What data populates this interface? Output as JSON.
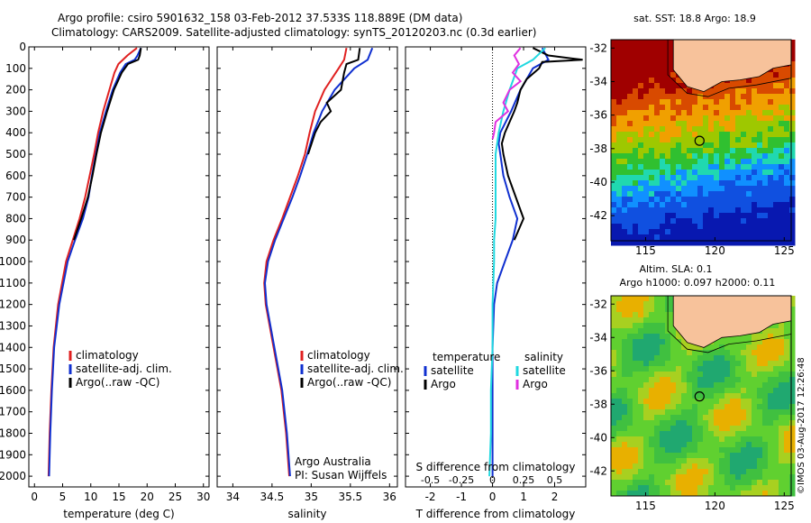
{
  "header": {
    "title_line1": "Argo profile: csiro 5901632_158 03-Feb-2012 37.533S 118.889E (DM data)",
    "title_line2": "Climatology: CARS2009. Satellite-adjusted climatology: synTS_20120203.nc (0.3d earlier)"
  },
  "colors": {
    "climatology": "#e02020",
    "satellite": "#1030d0",
    "argo": "#000000",
    "sal_satellite": "#20d8e0",
    "sal_argo": "#e030e0",
    "land": "#f7c29b"
  },
  "chart_data": [
    {
      "id": "temperature",
      "type": "line",
      "xlabel": "temperature (deg C)",
      "ylabel": "",
      "xlim": [
        -1,
        31
      ],
      "ylim": [
        0,
        2050
      ],
      "xticks": [
        0,
        5,
        10,
        15,
        20,
        25,
        30
      ],
      "yticks": [
        0,
        100,
        200,
        300,
        400,
        500,
        600,
        700,
        800,
        900,
        1000,
        1100,
        1200,
        1300,
        1400,
        1500,
        1600,
        1700,
        1800,
        1900,
        2000
      ],
      "legend": [
        "climatology",
        "satellite-adj. clim.",
        "Argo(..raw -QC)"
      ],
      "series": [
        {
          "name": "climatology",
          "depth": [
            5,
            40,
            80,
            120,
            200,
            300,
            400,
            500,
            600,
            700,
            800,
            900,
            1000,
            1200,
            1400,
            1600,
            1800,
            2000
          ],
          "values": [
            18.2,
            16.5,
            14.9,
            14.2,
            13.3,
            12.2,
            11.3,
            10.6,
            9.8,
            9.0,
            8.0,
            6.8,
            5.6,
            4.2,
            3.4,
            3.0,
            2.7,
            2.5
          ]
        },
        {
          "name": "satellite-adj. clim.",
          "depth": [
            5,
            40,
            60,
            80,
            120,
            200,
            300,
            400,
            500,
            600,
            700,
            800,
            900,
            1000,
            1200,
            1400,
            1600,
            1800,
            2000
          ],
          "values": [
            18.9,
            18.3,
            17.8,
            16.2,
            15.2,
            13.9,
            12.7,
            11.6,
            10.9,
            10.2,
            9.6,
            8.6,
            7.2,
            5.9,
            4.4,
            3.5,
            3.1,
            2.8,
            2.6
          ]
        },
        {
          "name": "Argo(..raw -QC)",
          "depth": [
            5,
            40,
            60,
            80,
            120,
            200,
            300,
            400,
            500,
            600,
            700,
            800,
            900
          ],
          "values": [
            18.9,
            18.7,
            18.4,
            16.6,
            15.5,
            14.1,
            12.9,
            11.8,
            11.0,
            10.3,
            9.5,
            8.3,
            7.0
          ]
        }
      ]
    },
    {
      "id": "salinity",
      "type": "line",
      "xlabel": "salinity",
      "ylabel": "",
      "xlim": [
        33.8,
        36.1
      ],
      "ylim": [
        0,
        2050
      ],
      "xticks": [
        34,
        34.5,
        35,
        35.5,
        36
      ],
      "legend": [
        "climatology",
        "satellite-adj. clim.",
        "Argo(..raw -QC)"
      ],
      "annotation": [
        "Argo Australia",
        "PI: Susan Wijffels"
      ],
      "series": [
        {
          "name": "climatology",
          "depth": [
            5,
            60,
            100,
            200,
            300,
            400,
            500,
            600,
            700,
            800,
            900,
            1000,
            1100,
            1200,
            1400,
            1600,
            1800,
            2000
          ],
          "values": [
            35.45,
            35.42,
            35.35,
            35.17,
            35.05,
            34.98,
            34.92,
            34.83,
            34.73,
            34.63,
            34.52,
            34.43,
            34.4,
            34.42,
            34.52,
            34.62,
            34.68,
            34.72
          ]
        },
        {
          "name": "satellite-adj. clim.",
          "depth": [
            5,
            60,
            100,
            200,
            300,
            400,
            500,
            600,
            700,
            800,
            900,
            1000,
            1100,
            1200,
            1400,
            1600,
            1800,
            2000
          ],
          "values": [
            35.78,
            35.72,
            35.55,
            35.3,
            35.14,
            35.03,
            34.95,
            34.86,
            34.76,
            34.65,
            34.54,
            34.45,
            34.41,
            34.43,
            34.53,
            34.63,
            34.69,
            34.73
          ]
        },
        {
          "name": "Argo(..raw -QC)",
          "depth": [
            5,
            60,
            80,
            120,
            200,
            260,
            300,
            350,
            400,
            500
          ],
          "values": [
            35.62,
            35.6,
            35.45,
            35.42,
            35.38,
            35.2,
            35.25,
            35.12,
            35.05,
            34.96
          ]
        }
      ]
    },
    {
      "id": "difference",
      "type": "line",
      "xlabel": "T difference from climatology",
      "xlabel2": "S difference from climatology",
      "xlim": [
        -2.8,
        3
      ],
      "ylim": [
        0,
        2050
      ],
      "xticks": [
        -2,
        -1,
        0,
        1,
        2
      ],
      "xticks_top": [
        -0.5,
        -0.25,
        0,
        0.25,
        0.5
      ],
      "legend_temp_title": "temperature",
      "legend_sal_title": "salinity",
      "legend": [
        "satellite",
        "Argo",
        "satellite",
        "Argo"
      ],
      "series": [
        {
          "name": "T satellite",
          "depth": [
            5,
            60,
            100,
            200,
            300,
            400,
            450,
            500,
            600,
            700,
            800,
            900,
            1000,
            1100,
            1200,
            1400,
            1600,
            1800,
            2000
          ],
          "values": [
            1.6,
            1.8,
            1.3,
            0.9,
            0.6,
            0.25,
            0.2,
            0.25,
            0.35,
            0.55,
            0.8,
            0.65,
            0.4,
            0.15,
            0.05,
            0.0,
            0.0,
            0.0,
            0.0
          ]
        },
        {
          "name": "T Argo",
          "depth": [
            5,
            40,
            60,
            70,
            100,
            150,
            200,
            260,
            300,
            400,
            450,
            500,
            600,
            700,
            800,
            900
          ],
          "values": [
            1.3,
            1.8,
            2.9,
            1.6,
            1.5,
            1.1,
            0.9,
            0.8,
            0.7,
            0.4,
            0.3,
            0.35,
            0.5,
            0.75,
            1.0,
            0.7
          ]
        },
        {
          "name": "S satellite",
          "depth": [
            5,
            60,
            100,
            200,
            300,
            400,
            500,
            600,
            700,
            800,
            900,
            1000,
            1200,
            1400,
            1600,
            1800,
            2000
          ],
          "values": [
            1.7,
            1.3,
            0.8,
            0.55,
            0.35,
            0.2,
            0.1,
            0.1,
            0.1,
            0.1,
            0.05,
            0.05,
            0.0,
            0.0,
            -0.05,
            -0.05,
            -0.1
          ]
        },
        {
          "name": "S Argo",
          "depth": [
            5,
            40,
            80,
            120,
            160,
            200,
            260,
            300,
            350,
            400,
            430
          ],
          "values": [
            0.9,
            0.7,
            0.85,
            0.65,
            0.9,
            0.55,
            0.35,
            0.5,
            0.1,
            0.05,
            0.0
          ]
        }
      ]
    }
  ],
  "maps": {
    "sst": {
      "title": "sat. SST: 18.8 Argo: 18.9",
      "lat_ticks": [
        "-32",
        "-34",
        "-36",
        "-38",
        "-40",
        "-42"
      ],
      "lon_ticks": [
        "115",
        "120",
        "125"
      ]
    },
    "sla": {
      "title1": "Altim. SLA: 0.1",
      "title2": "Argo h1000: 0.097 h2000: 0.11",
      "lat_ticks": [
        "-32",
        "-34",
        "-36",
        "-38",
        "-40",
        "-42"
      ],
      "lon_ticks": [
        "115",
        "120",
        "125"
      ],
      "credit": "©IMOS 03-Aug-2017 12:26:48"
    }
  }
}
